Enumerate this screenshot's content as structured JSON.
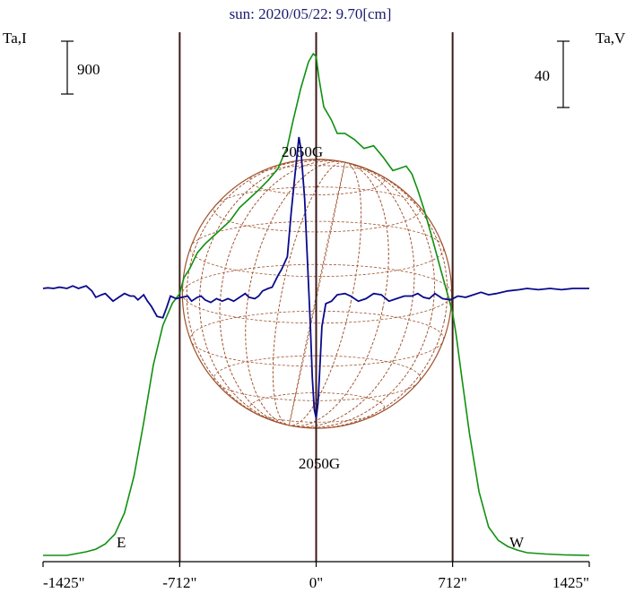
{
  "chart_data": {
    "type": "line",
    "title": "sun: 2020/05/22: 9.70[cm]",
    "left_axis_label": "Ta,I",
    "right_axis_label": "Ta,V",
    "left_scale_bar": "900",
    "right_scale_bar": "40",
    "x_tick_labels": [
      "-1425\"",
      "-712\"",
      "0\"",
      "712\"",
      "1425\""
    ],
    "x_ticks": [
      -1425,
      -712,
      0,
      712,
      1425
    ],
    "xlim": [
      -1425,
      1425
    ],
    "limb_markers": [
      -712,
      0,
      712
    ],
    "east_label": "E",
    "west_label": "W",
    "upper_annotation": "2050G",
    "lower_annotation": "2050G",
    "colors": {
      "stokes_i": "#109010",
      "stokes_v": "#0a0a8c",
      "solar_disk": "#a0522d",
      "limb_lines": "#3c1a1a",
      "title": "#1a1a6e"
    },
    "series": [
      {
        "name": "I",
        "axis": "left",
        "x": [
          -1425,
          -1300,
          -1200,
          -1150,
          -1100,
          -1050,
          -1000,
          -950,
          -900,
          -850,
          -800,
          -750,
          -712,
          -690,
          -660,
          -620,
          -580,
          -550,
          -500,
          -450,
          -400,
          -350,
          -300,
          -250,
          -200,
          -150,
          -120,
          -80,
          -40,
          -15,
          0,
          15,
          40,
          80,
          110,
          150,
          200,
          250,
          300,
          350,
          400,
          430,
          470,
          500,
          530,
          560,
          600,
          650,
          690,
          712,
          730,
          760,
          800,
          850,
          900,
          950,
          1000,
          1050,
          1100,
          1200,
          1300,
          1425
        ],
        "values": [
          0,
          0,
          40,
          70,
          130,
          240,
          480,
          900,
          1500,
          2150,
          2600,
          2850,
          2960,
          3140,
          3240,
          3420,
          3520,
          3580,
          3680,
          3780,
          3930,
          4030,
          4130,
          4240,
          4370,
          4620,
          4920,
          5280,
          5580,
          5670,
          5640,
          5390,
          5070,
          4920,
          4770,
          4770,
          4700,
          4600,
          4630,
          4500,
          4350,
          4370,
          4400,
          4310,
          4130,
          3930,
          3630,
          3230,
          2920,
          2740,
          2500,
          2010,
          1380,
          720,
          320,
          170,
          100,
          60,
          30,
          15,
          5,
          0
        ]
      },
      {
        "name": "V",
        "axis": "right",
        "x": [
          -1425,
          -1400,
          -1370,
          -1340,
          -1300,
          -1270,
          -1240,
          -1200,
          -1170,
          -1150,
          -1120,
          -1100,
          -1060,
          -1030,
          -1000,
          -970,
          -950,
          -930,
          -900,
          -880,
          -860,
          -830,
          -800,
          -780,
          -760,
          -730,
          -700,
          -670,
          -650,
          -620,
          -600,
          -580,
          -550,
          -520,
          -490,
          -460,
          -430,
          -410,
          -390,
          -370,
          -350,
          -320,
          -300,
          -280,
          -250,
          -230,
          -200,
          -180,
          -150,
          -130,
          -110,
          -90,
          -80,
          -60,
          -45,
          -30,
          -20,
          -10,
          0,
          10,
          20,
          30,
          50,
          80,
          110,
          150,
          180,
          220,
          260,
          300,
          340,
          380,
          420,
          460,
          500,
          530,
          560,
          590,
          620,
          660,
          700,
          740,
          780,
          820,
          860,
          900,
          940,
          1000,
          1060,
          1100,
          1160,
          1220,
          1280,
          1340,
          1425
        ],
        "values": [
          0,
          0.5,
          0,
          1,
          0,
          2,
          0,
          2,
          -2,
          -7,
          -5,
          -4,
          -10,
          -7,
          -4,
          -6,
          -6,
          -9,
          -5,
          -10,
          -14,
          -22,
          -23,
          -15,
          -6,
          -8,
          -7,
          -6,
          -10,
          -7,
          -6,
          -9,
          -11,
          -8,
          -10,
          -8,
          -10,
          -8,
          -6,
          -4,
          -7,
          -8,
          -6,
          -2,
          0,
          1,
          10,
          15,
          25,
          60,
          90,
          119,
          110,
          70,
          20,
          -30,
          -70,
          -95,
          -102,
          -90,
          -60,
          -30,
          -12,
          -10,
          -5,
          -4,
          -6,
          -10,
          -8,
          -4,
          -5,
          -10,
          -8,
          -6,
          -6,
          -4,
          -7,
          -8,
          -4,
          -8,
          -9,
          -6,
          -7,
          -5,
          -3,
          -5,
          -4,
          -2,
          -1,
          0,
          -1,
          0,
          -1,
          0,
          0
        ]
      }
    ]
  }
}
